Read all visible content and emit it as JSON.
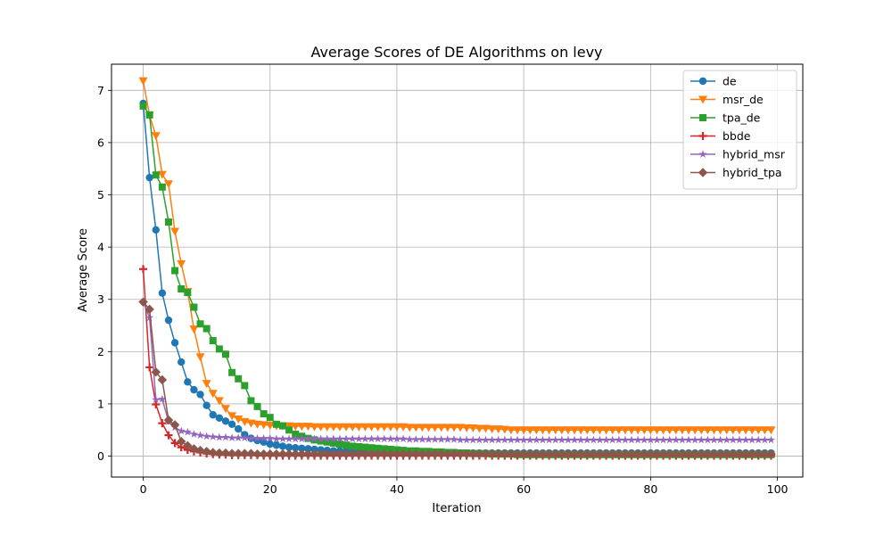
{
  "chart_data": {
    "type": "line",
    "title": "Average Scores of DE Algorithms on levy",
    "xlabel": "Iteration",
    "ylabel": "Average Score",
    "xlim": [
      -5,
      104
    ],
    "ylim": [
      -0.4,
      7.5
    ],
    "xticks": [
      "0",
      "20",
      "40",
      "60",
      "80",
      "100"
    ],
    "yticks": [
      "0",
      "1",
      "2",
      "3",
      "4",
      "5",
      "6",
      "7"
    ],
    "grid": true,
    "legend_position": "top-right",
    "series": [
      {
        "name": "de",
        "color": "#1f77b4",
        "marker": "circle",
        "values": [
          6.75,
          5.33,
          4.33,
          3.12,
          2.6,
          2.17,
          1.8,
          1.42,
          1.27,
          1.18,
          0.97,
          0.79,
          0.73,
          0.67,
          0.61,
          0.52,
          0.41,
          0.34,
          0.3,
          0.27,
          0.23,
          0.21,
          0.19,
          0.17,
          0.16,
          0.15,
          0.14,
          0.13,
          0.12,
          0.11,
          0.1,
          0.1,
          0.09,
          0.09,
          0.09,
          0.08,
          0.08,
          0.08,
          0.08,
          0.08,
          0.07,
          0.07,
          0.07,
          0.07,
          0.07,
          0.07,
          0.06,
          0.06,
          0.06,
          0.06,
          0.06,
          0.06,
          0.06,
          0.06,
          0.06,
          0.06,
          0.06,
          0.06,
          0.06,
          0.06,
          0.06,
          0.06,
          0.06,
          0.06,
          0.06,
          0.06,
          0.06,
          0.06,
          0.06,
          0.06,
          0.06,
          0.06,
          0.06,
          0.06,
          0.06,
          0.06,
          0.06,
          0.06,
          0.06,
          0.06,
          0.06,
          0.06,
          0.06,
          0.06,
          0.06,
          0.06,
          0.06,
          0.06,
          0.06,
          0.06,
          0.06,
          0.06,
          0.06,
          0.06,
          0.06,
          0.06,
          0.06,
          0.06,
          0.06,
          0.06
        ]
      },
      {
        "name": "msr_de",
        "color": "#ff7f0e",
        "marker": "triangle-down",
        "values": [
          7.18,
          6.52,
          6.13,
          5.39,
          5.21,
          4.3,
          3.68,
          3.15,
          2.43,
          1.9,
          1.39,
          1.2,
          1.06,
          0.91,
          0.77,
          0.71,
          0.66,
          0.63,
          0.61,
          0.6,
          0.59,
          0.58,
          0.58,
          0.58,
          0.57,
          0.57,
          0.57,
          0.56,
          0.56,
          0.56,
          0.56,
          0.56,
          0.56,
          0.56,
          0.56,
          0.56,
          0.56,
          0.56,
          0.56,
          0.56,
          0.56,
          0.56,
          0.55,
          0.55,
          0.55,
          0.55,
          0.55,
          0.55,
          0.55,
          0.55,
          0.55,
          0.54,
          0.54,
          0.53,
          0.53,
          0.52,
          0.52,
          0.51,
          0.5,
          0.5,
          0.5,
          0.5,
          0.5,
          0.5,
          0.5,
          0.5,
          0.5,
          0.5,
          0.5,
          0.5,
          0.5,
          0.5,
          0.5,
          0.5,
          0.5,
          0.5,
          0.5,
          0.5,
          0.5,
          0.5,
          0.5,
          0.5,
          0.5,
          0.5,
          0.5,
          0.5,
          0.5,
          0.5,
          0.5,
          0.5,
          0.5,
          0.5,
          0.5,
          0.5,
          0.5,
          0.5,
          0.5,
          0.5,
          0.5,
          0.5
        ]
      },
      {
        "name": "tpa_de",
        "color": "#2ca02c",
        "marker": "square",
        "values": [
          6.7,
          6.53,
          5.38,
          5.15,
          4.48,
          3.55,
          3.2,
          3.13,
          2.85,
          2.53,
          2.44,
          2.21,
          2.05,
          1.95,
          1.6,
          1.48,
          1.35,
          1.06,
          0.95,
          0.81,
          0.74,
          0.61,
          0.58,
          0.5,
          0.42,
          0.38,
          0.34,
          0.31,
          0.29,
          0.27,
          0.25,
          0.23,
          0.21,
          0.19,
          0.18,
          0.17,
          0.16,
          0.15,
          0.14,
          0.13,
          0.12,
          0.11,
          0.1,
          0.1,
          0.09,
          0.09,
          0.08,
          0.08,
          0.07,
          0.07,
          0.06,
          0.06,
          0.05,
          0.05,
          0.05,
          0.04,
          0.04,
          0.04,
          0.04,
          0.03,
          0.03,
          0.03,
          0.03,
          0.03,
          0.03,
          0.03,
          0.03,
          0.03,
          0.03,
          0.03,
          0.03,
          0.03,
          0.03,
          0.03,
          0.03,
          0.03,
          0.03,
          0.03,
          0.03,
          0.03,
          0.03,
          0.03,
          0.03,
          0.03,
          0.03,
          0.03,
          0.03,
          0.03,
          0.03,
          0.03,
          0.03,
          0.03,
          0.03,
          0.03,
          0.03,
          0.03,
          0.03,
          0.03,
          0.03,
          0.03
        ]
      },
      {
        "name": "bbde",
        "color": "#d62728",
        "marker": "plus",
        "values": [
          3.58,
          1.7,
          0.99,
          0.63,
          0.4,
          0.25,
          0.17,
          0.12,
          0.09,
          0.07,
          0.05,
          0.04,
          0.03,
          0.03,
          0.02,
          0.02,
          0.02,
          0.02,
          0.02,
          0.01,
          0.01,
          0.01,
          0.01,
          0.01,
          0.01,
          0.01,
          0.01,
          0.01,
          0.01,
          0.01,
          0.01,
          0.01,
          0.01,
          0.01,
          0.01,
          0.01,
          0.01,
          0.01,
          0.01,
          0.01,
          0.01,
          0.01,
          0.01,
          0.01,
          0.01,
          0.01,
          0.01,
          0.01,
          0.01,
          0.01,
          0.01,
          0.01,
          0.01,
          0.01,
          0.01,
          0.01,
          0.01,
          0.01,
          0.01,
          0.01,
          0.01,
          0.01,
          0.01,
          0.01,
          0.01,
          0.01,
          0.01,
          0.01,
          0.01,
          0.01,
          0.01,
          0.01,
          0.01,
          0.01,
          0.01,
          0.01,
          0.01,
          0.01,
          0.01,
          0.01,
          0.01,
          0.01,
          0.01,
          0.01,
          0.01,
          0.01,
          0.01,
          0.01,
          0.01,
          0.01,
          0.01,
          0.01,
          0.01,
          0.01,
          0.01,
          0.01,
          0.01,
          0.01,
          0.01,
          0.01
        ]
      },
      {
        "name": "hybrid_msr",
        "color": "#9467bd",
        "marker": "star",
        "values": [
          2.95,
          2.65,
          1.08,
          1.09,
          0.66,
          0.55,
          0.48,
          0.46,
          0.42,
          0.4,
          0.38,
          0.37,
          0.36,
          0.36,
          0.35,
          0.35,
          0.35,
          0.34,
          0.34,
          0.34,
          0.34,
          0.33,
          0.33,
          0.33,
          0.33,
          0.33,
          0.33,
          0.33,
          0.33,
          0.33,
          0.33,
          0.33,
          0.33,
          0.33,
          0.33,
          0.33,
          0.33,
          0.33,
          0.33,
          0.33,
          0.33,
          0.33,
          0.32,
          0.32,
          0.32,
          0.32,
          0.32,
          0.32,
          0.32,
          0.32,
          0.31,
          0.31,
          0.31,
          0.31,
          0.31,
          0.31,
          0.31,
          0.31,
          0.31,
          0.31,
          0.31,
          0.31,
          0.31,
          0.31,
          0.31,
          0.31,
          0.31,
          0.31,
          0.31,
          0.31,
          0.31,
          0.31,
          0.31,
          0.31,
          0.31,
          0.31,
          0.31,
          0.31,
          0.31,
          0.31,
          0.31,
          0.31,
          0.31,
          0.31,
          0.31,
          0.31,
          0.31,
          0.31,
          0.31,
          0.31,
          0.31,
          0.31,
          0.31,
          0.31,
          0.31,
          0.31,
          0.31,
          0.31,
          0.31,
          0.31
        ]
      },
      {
        "name": "hybrid_tpa",
        "color": "#8c564b",
        "marker": "diamond",
        "values": [
          2.95,
          2.81,
          1.61,
          1.46,
          0.69,
          0.6,
          0.28,
          0.2,
          0.14,
          0.11,
          0.09,
          0.07,
          0.06,
          0.06,
          0.05,
          0.05,
          0.05,
          0.05,
          0.04,
          0.04,
          0.04,
          0.04,
          0.04,
          0.04,
          0.04,
          0.04,
          0.04,
          0.04,
          0.04,
          0.04,
          0.04,
          0.04,
          0.04,
          0.04,
          0.04,
          0.04,
          0.04,
          0.04,
          0.04,
          0.04,
          0.04,
          0.04,
          0.04,
          0.04,
          0.04,
          0.04,
          0.04,
          0.04,
          0.04,
          0.04,
          0.04,
          0.04,
          0.04,
          0.04,
          0.04,
          0.04,
          0.04,
          0.04,
          0.04,
          0.04,
          0.04,
          0.04,
          0.04,
          0.04,
          0.04,
          0.04,
          0.04,
          0.04,
          0.04,
          0.04,
          0.04,
          0.04,
          0.04,
          0.04,
          0.04,
          0.04,
          0.04,
          0.04,
          0.04,
          0.04,
          0.04,
          0.04,
          0.04,
          0.04,
          0.04,
          0.04,
          0.04,
          0.04,
          0.04,
          0.04,
          0.04,
          0.04,
          0.04,
          0.04,
          0.04,
          0.04,
          0.04,
          0.04,
          0.04,
          0.04
        ]
      }
    ]
  }
}
